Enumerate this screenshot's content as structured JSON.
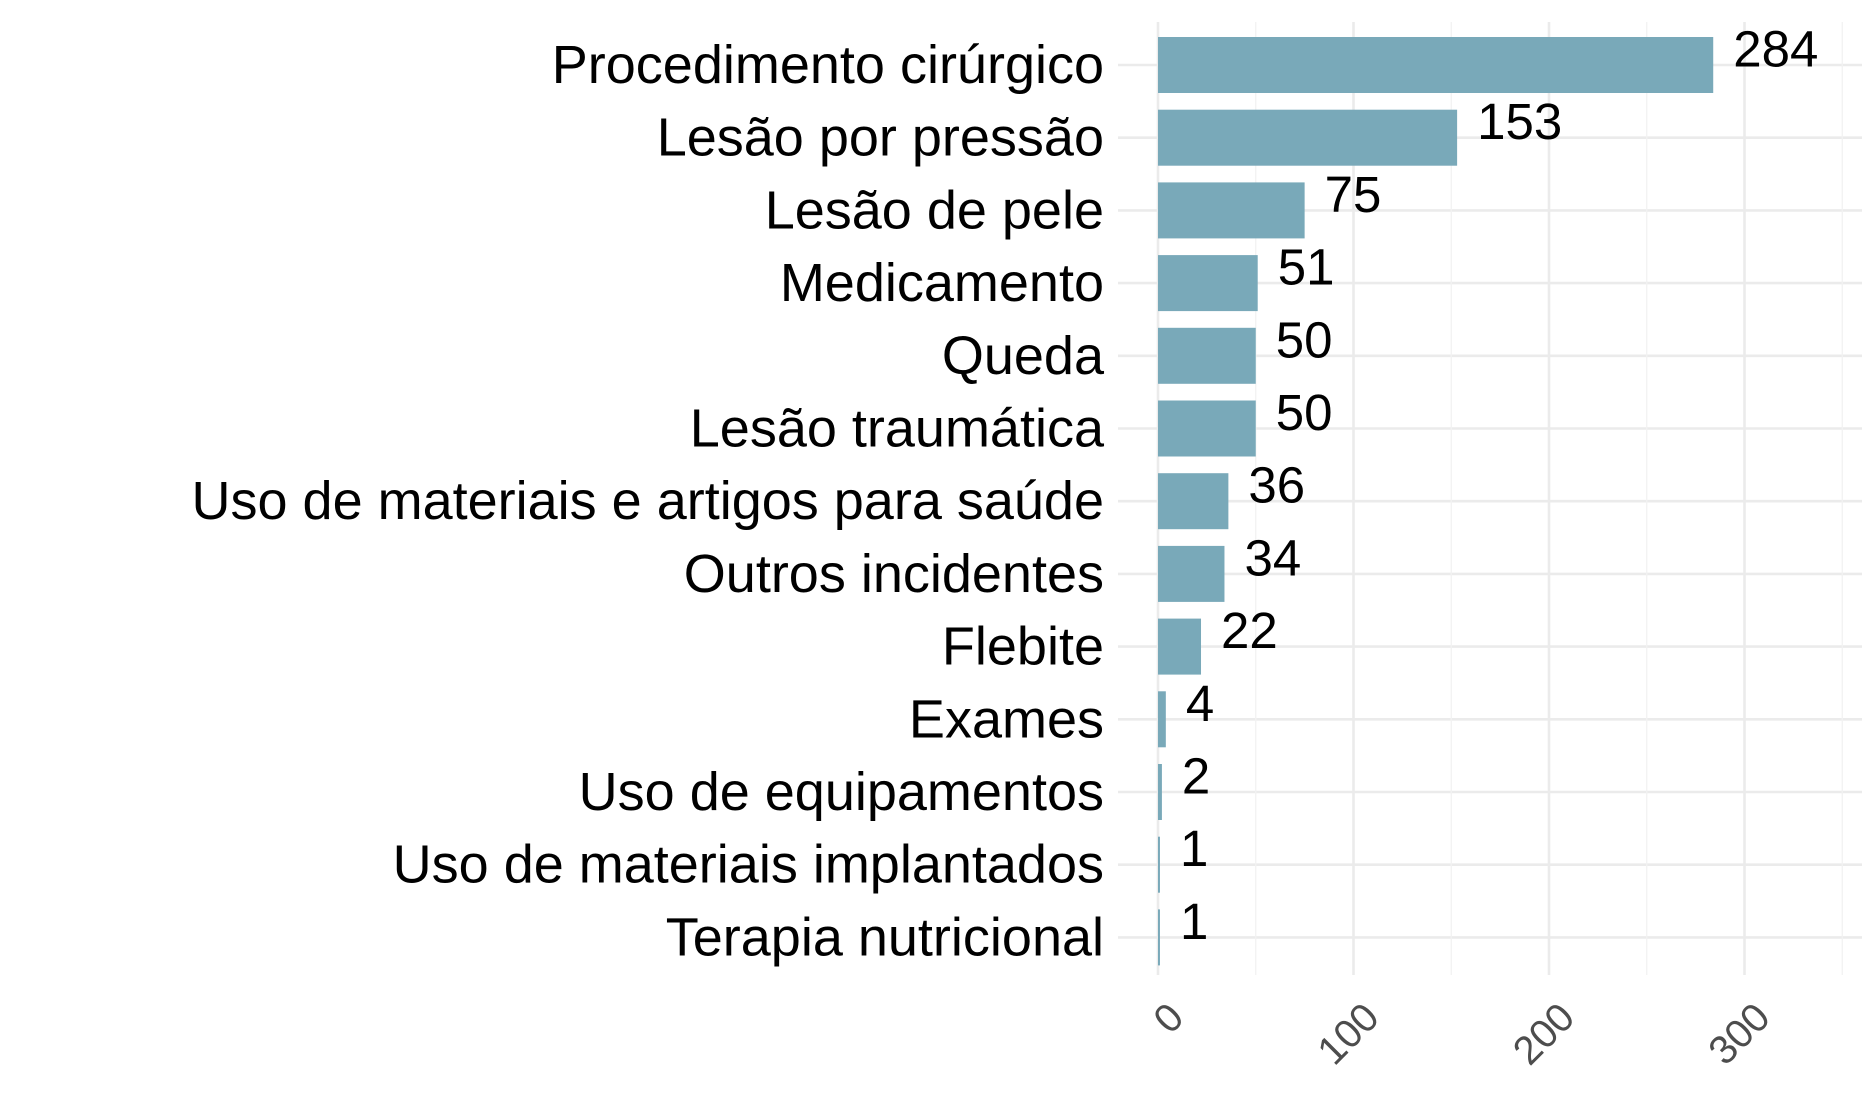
{
  "chart_data": {
    "type": "bar",
    "orientation": "horizontal",
    "categories": [
      "Procedimento cirúrgico",
      "Lesão por pressão",
      "Lesão de pele",
      "Medicamento",
      "Queda",
      "Lesão traumática",
      "Uso de materiais e artigos para saúde",
      "Outros incidentes",
      "Flebite",
      "Exames",
      "Uso de equipamentos",
      "Uso de materiais implantados",
      "Terapia nutricional"
    ],
    "values": [
      284,
      153,
      75,
      51,
      50,
      50,
      36,
      34,
      22,
      4,
      2,
      1,
      1
    ],
    "value_labels": [
      "284",
      "153",
      "75",
      "51",
      "50",
      "50",
      "36",
      "34",
      "22",
      "4",
      "2",
      "1",
      "1"
    ],
    "x_ticks": [
      0,
      100,
      200,
      300
    ],
    "x_tick_labels": [
      "0",
      "100",
      "200",
      "300"
    ],
    "xlim": [
      0,
      350
    ],
    "title": "",
    "xlabel": "",
    "ylabel": "",
    "grid": true,
    "legend": "none",
    "colors": {
      "bar": "#79a9b9",
      "grid_major": "#ebebeb",
      "grid_minor": "#f2f2f2",
      "text": "#000000",
      "tick_text": "#4d4d4d"
    }
  }
}
